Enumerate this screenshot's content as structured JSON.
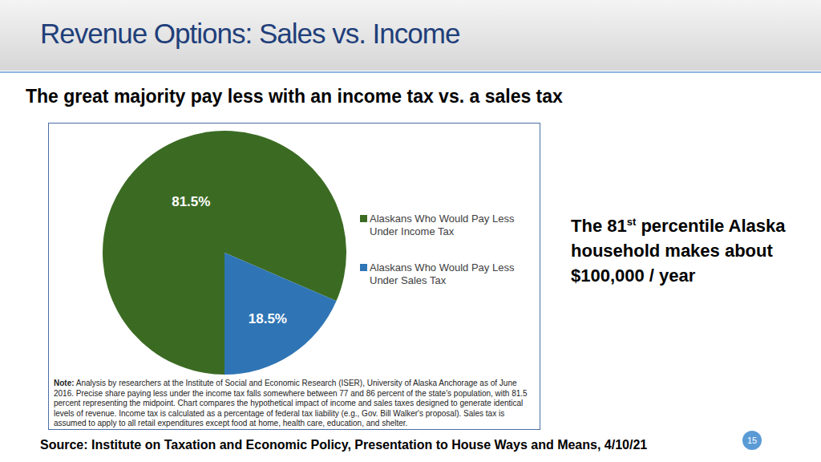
{
  "slide": {
    "title": "Revenue Options: Sales vs. Income",
    "subtitle": "The great majority pay less with an income tax vs. a sales tax",
    "side_text": {
      "before": "The 81",
      "superscript": "st",
      "after": " percentile Alaska household makes about $100,000 / year"
    },
    "note_label": "Note:",
    "note": "Analysis by researchers at the Institute of Social and Economic Research (ISER), University of Alaska Anchorage as of June 2016. Precise share paying less under the income tax falls somewhere between 77 and 86 percent of the state's population, with 81.5 percent representing the midpoint. Chart compares the hypothetical impact of income and sales taxes designed to generate identical levels of revenue. Income tax is calculated as a percentage of federal tax liability (e.g., Gov. Bill Walker's proposal). Sales tax is assumed to apply to all retail expenditures except food at home, health care, education, and shelter.",
    "source": "Source:  Institute on Taxation and Economic Policy, Presentation to House Ways and Means, 4/10/21",
    "page_number": "15"
  },
  "chart_data": {
    "type": "pie",
    "categories": [
      "Alaskans Who Would Pay Less Under Income Tax",
      "Alaskans Who Would Pay Less Under Sales Tax"
    ],
    "values": [
      81.5,
      18.5
    ],
    "value_labels": [
      "81.5%",
      "18.5%"
    ],
    "colors": [
      "#3b6b23",
      "#2f75b5"
    ],
    "data_labels": true,
    "legend": "right"
  }
}
